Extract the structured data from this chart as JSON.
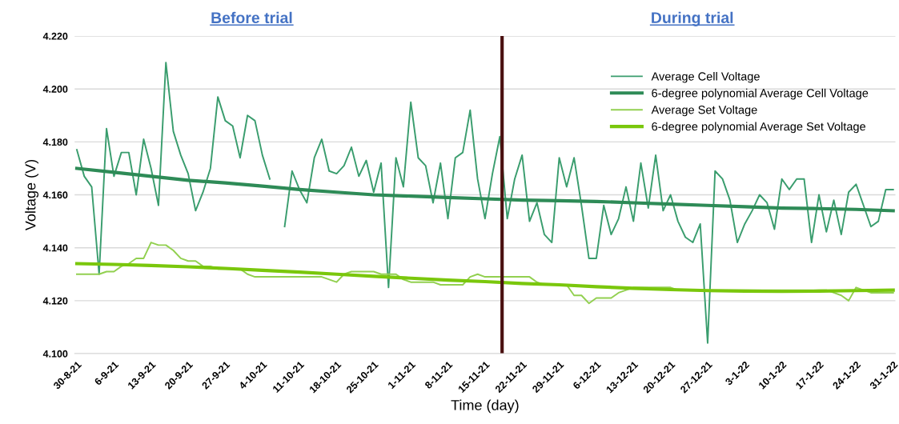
{
  "chart_data": {
    "type": "line",
    "categories": [
      "30-8-21",
      null,
      null,
      null,
      null,
      "6-9-21",
      null,
      null,
      null,
      null,
      "13-9-21",
      null,
      null,
      null,
      null,
      "20-9-21",
      null,
      null,
      null,
      null,
      "27-9-21",
      null,
      null,
      null,
      null,
      "4-10-21",
      null,
      null,
      null,
      null,
      "11-10-21",
      null,
      null,
      null,
      null,
      "18-10-21",
      null,
      null,
      null,
      null,
      "25-10-21",
      null,
      null,
      null,
      null,
      "1-11-21",
      null,
      null,
      null,
      null,
      "8-11-21",
      null,
      null,
      null,
      null,
      "15-11-21",
      null,
      null,
      null,
      null,
      "22-11-21",
      null,
      null,
      null,
      null,
      "29-11-21",
      null,
      null,
      null,
      null,
      "6-12-21",
      null,
      null,
      null,
      null,
      "13-12-21",
      null,
      null,
      null,
      null,
      "20-12-21",
      null,
      null,
      null,
      null,
      "27-12-21",
      null,
      null,
      null,
      null,
      "3-1-22",
      null,
      null,
      null,
      null,
      "10-1-22",
      null,
      null,
      null,
      null,
      "17-1-22",
      null,
      null,
      null,
      null,
      "24-1-22",
      null,
      null,
      null,
      null,
      "31-1-22"
    ],
    "series": [
      {
        "name": "Average Cell Voltage",
        "color": "#3a9d6e",
        "values": [
          4.177,
          4.167,
          4.163,
          4.13,
          4.185,
          4.167,
          4.176,
          4.176,
          4.16,
          4.181,
          4.17,
          4.156,
          4.21,
          4.184,
          4.175,
          4.168,
          4.154,
          4.161,
          4.17,
          4.197,
          4.188,
          4.186,
          4.174,
          4.19,
          4.188,
          4.175,
          4.166,
          null,
          4.148,
          4.169,
          4.162,
          4.157,
          4.174,
          4.181,
          4.169,
          4.168,
          4.171,
          4.178,
          4.167,
          4.173,
          4.161,
          4.172,
          4.125,
          4.174,
          4.163,
          4.195,
          4.174,
          4.171,
          4.157,
          4.172,
          4.151,
          4.174,
          4.176,
          4.192,
          4.166,
          4.151,
          4.168,
          4.182,
          4.151,
          4.166,
          4.175,
          4.15,
          4.157,
          4.145,
          4.142,
          4.174,
          4.163,
          4.174,
          4.156,
          4.136,
          4.136,
          4.156,
          4.145,
          4.151,
          4.163,
          4.15,
          4.172,
          4.155,
          4.175,
          4.154,
          4.16,
          4.15,
          4.144,
          4.142,
          4.149,
          4.104,
          4.169,
          4.166,
          4.158,
          4.142,
          4.149,
          4.154,
          4.16,
          4.157,
          4.147,
          4.166,
          4.162,
          4.166,
          4.166,
          4.142,
          4.16,
          4.146,
          4.158,
          4.145,
          4.161,
          4.164,
          4.156,
          4.148,
          4.15,
          4.162,
          4.162
        ]
      },
      {
        "name": "6-degree polynomial Average Cell Voltage",
        "color": "#2e8b57",
        "x": [
          "30-8-21",
          "6-9-21",
          "13-9-21",
          "20-9-21",
          "27-9-21",
          "4-10-21",
          "11-10-21",
          "18-10-21",
          "25-10-21",
          "1-11-21",
          "8-11-21",
          "15-11-21",
          "22-11-21",
          "29-11-21",
          "6-12-21",
          "13-12-21",
          "20-12-21",
          "27-12-21",
          "3-1-22",
          "10-1-22",
          "17-1-22",
          "24-1-22",
          "31-1-22"
        ],
        "values": [
          4.17,
          4.1685,
          4.167,
          4.1655,
          4.1645,
          4.1633,
          4.162,
          4.161,
          4.16,
          4.1595,
          4.159,
          4.1585,
          4.158,
          4.1578,
          4.1575,
          4.157,
          4.1565,
          4.156,
          4.1555,
          4.155,
          4.1548,
          4.1545,
          4.154
        ]
      },
      {
        "name": "Average Set Voltage",
        "color": "#92d050",
        "values": [
          4.13,
          4.13,
          4.13,
          4.13,
          4.131,
          4.131,
          4.133,
          4.134,
          4.136,
          4.136,
          4.142,
          4.141,
          4.141,
          4.139,
          4.136,
          4.135,
          4.135,
          4.133,
          4.133,
          4.132,
          4.132,
          4.132,
          4.132,
          4.13,
          4.129,
          4.129,
          4.129,
          4.129,
          4.129,
          4.129,
          4.129,
          4.129,
          4.129,
          4.129,
          4.128,
          4.127,
          4.13,
          4.131,
          4.131,
          4.131,
          4.131,
          4.13,
          4.13,
          4.13,
          4.128,
          4.127,
          4.127,
          4.127,
          4.127,
          4.126,
          4.126,
          4.126,
          4.126,
          4.129,
          4.13,
          4.129,
          4.129,
          4.129,
          4.129,
          4.129,
          4.129,
          4.129,
          4.127,
          4.126,
          4.126,
          4.126,
          4.126,
          4.122,
          4.122,
          4.119,
          4.121,
          4.121,
          4.121,
          4.123,
          4.124,
          4.125,
          4.125,
          4.125,
          4.125,
          4.125,
          4.125,
          4.124,
          4.124,
          4.124,
          4.124,
          4.124,
          4.124,
          4.124,
          4.124,
          4.124,
          4.124,
          4.124,
          4.124,
          4.124,
          4.124,
          4.124,
          4.124,
          4.124,
          4.124,
          4.124,
          4.124,
          4.124,
          4.123,
          4.122,
          4.12,
          4.125,
          4.124,
          4.123,
          4.123,
          4.123,
          4.123
        ]
      },
      {
        "name": "6-degree polynomial Average Set Voltage",
        "color": "#7ac70c",
        "x": [
          "30-8-21",
          "6-9-21",
          "13-9-21",
          "20-9-21",
          "27-9-21",
          "4-10-21",
          "11-10-21",
          "18-10-21",
          "25-10-21",
          "1-11-21",
          "8-11-21",
          "15-11-21",
          "22-11-21",
          "29-11-21",
          "6-12-21",
          "13-12-21",
          "20-12-21",
          "27-12-21",
          "3-1-22",
          "10-1-22",
          "17-1-22",
          "24-1-22",
          "31-1-22"
        ],
        "values": [
          4.134,
          4.1337,
          4.1333,
          4.1328,
          4.1322,
          4.1315,
          4.1308,
          4.13,
          4.1292,
          4.1285,
          4.1278,
          4.1272,
          4.1265,
          4.126,
          4.1253,
          4.1247,
          4.1242,
          4.1238,
          4.1236,
          4.1235,
          4.1236,
          4.1238,
          4.124
        ]
      }
    ],
    "ylim": [
      4.1,
      4.22
    ],
    "yticks": [
      {
        "value": 4.1,
        "label": "4.100"
      },
      {
        "value": 4.12,
        "label": "4.120"
      },
      {
        "value": 4.14,
        "label": "4.140"
      },
      {
        "value": 4.16,
        "label": "4.160"
      },
      {
        "value": 4.18,
        "label": "4.180"
      },
      {
        "value": 4.2,
        "label": "4.200"
      },
      {
        "value": 4.22,
        "label": "4.220"
      }
    ],
    "xlabel": "Time (day)",
    "ylabel": "Voltage (V)",
    "annotations": [
      "Before trial",
      "During trial"
    ],
    "grid": "y",
    "legend": "top right",
    "marker": "none",
    "line_style": "solid"
  }
}
